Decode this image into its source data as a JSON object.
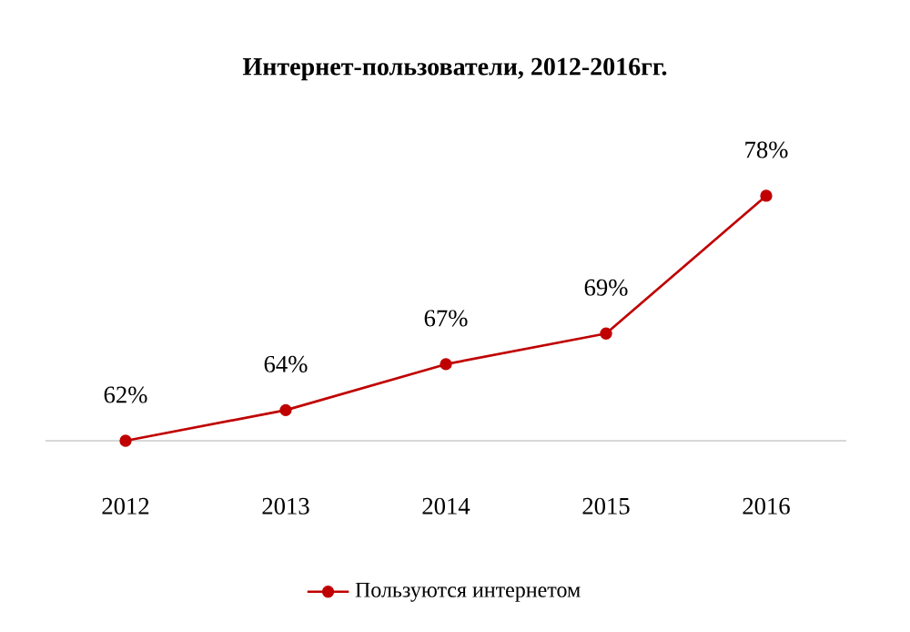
{
  "chart_data": {
    "type": "line",
    "title": "Интернет-пользователи, 2012-2016гг.",
    "categories": [
      "2012",
      "2013",
      "2014",
      "2015",
      "2016"
    ],
    "series": [
      {
        "name": "Пользуются интернетом",
        "color": "#c00000",
        "values": [
          62,
          64,
          67,
          69,
          78
        ],
        "value_labels": [
          "62%",
          "64%",
          "67%",
          "69%",
          "78%"
        ]
      }
    ],
    "tick_labels": "x",
    "marker": "circle",
    "legend": "bottom",
    "grid": false
  }
}
